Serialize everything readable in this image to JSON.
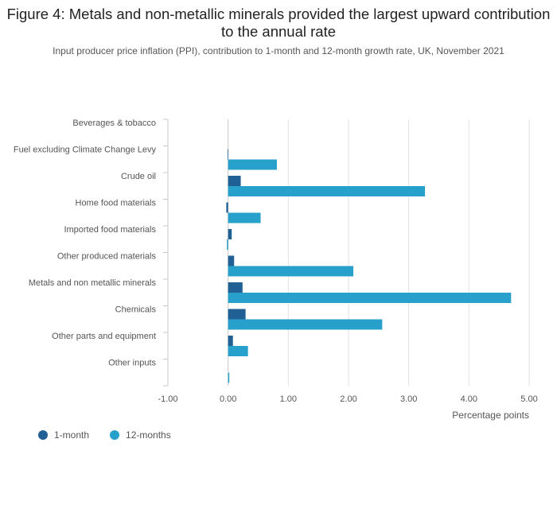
{
  "chart_data": {
    "type": "bar",
    "orientation": "horizontal",
    "title": "Figure 4: Metals and non-metallic minerals provided the largest upward contribution to the annual rate",
    "subtitle": "Input producer price inflation (PPI), contribution to 1-month and 12-month growth rate, UK, November 2021",
    "xlabel": "Percentage points",
    "xlim": [
      -1.0,
      5.0
    ],
    "xticks": [
      "-1.00",
      "0.00",
      "1.00",
      "2.00",
      "3.00",
      "4.00",
      "5.00"
    ],
    "grid": true,
    "legend_position": "bottom-left",
    "categories": [
      "Beverages & tobacco",
      "Fuel excluding Climate Change Levy",
      "Crude oil",
      "Home food materials",
      "Imported food materials",
      "Other produced materials",
      "Metals and non metallic minerals",
      "Chemicals",
      "Other parts and equipment",
      "Other inputs"
    ],
    "series": [
      {
        "name": "1-month",
        "color": "#206095",
        "values": [
          0.0,
          -0.01,
          0.21,
          -0.03,
          0.06,
          0.1,
          0.24,
          0.29,
          0.08,
          0.0
        ]
      },
      {
        "name": "12-months",
        "color": "#27a0cc",
        "values": [
          0.0,
          0.81,
          3.27,
          0.54,
          -0.02,
          2.08,
          4.7,
          2.56,
          0.33,
          0.02
        ]
      }
    ]
  }
}
